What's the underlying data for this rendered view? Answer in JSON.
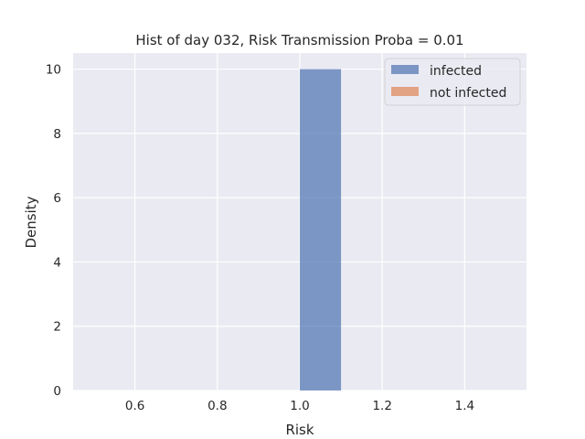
{
  "chart_data": {
    "type": "bar",
    "title": "Hist of day 032, Risk Transmission Proba = 0.01",
    "xlabel": "Risk",
    "ylabel": "Density",
    "xlim": [
      0.45,
      1.55
    ],
    "ylim": [
      0,
      10.5
    ],
    "xticks": [
      0.6,
      0.8,
      1.0,
      1.2,
      1.4
    ],
    "xtick_labels": [
      "0.6",
      "0.8",
      "1.0",
      "1.2",
      "1.4"
    ],
    "yticks": [
      0,
      2,
      4,
      6,
      8,
      10
    ],
    "ytick_labels": [
      "0",
      "2",
      "4",
      "6",
      "8",
      "10"
    ],
    "grid": true,
    "legend_position": "upper right",
    "series": [
      {
        "name": "infected",
        "color": "#4c72b0",
        "bins": [
          {
            "x0": 1.0,
            "x1": 1.1,
            "value": 10
          }
        ]
      },
      {
        "name": "not infected",
        "color": "#dd8452",
        "bins": []
      }
    ]
  }
}
